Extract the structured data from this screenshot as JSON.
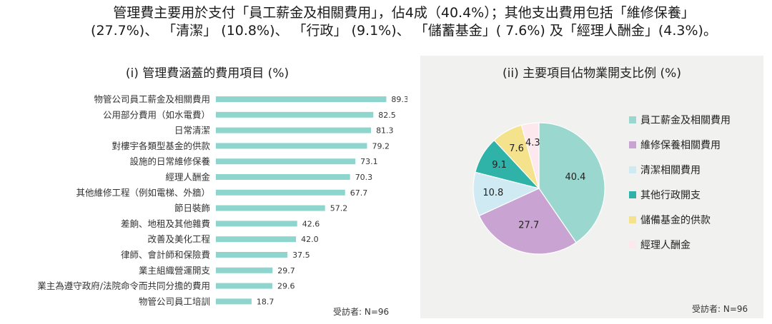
{
  "intro": {
    "line1": "管理費主要用於支付「員工薪金及相關費用」，佔4成（40.4%）；其他支出費用包括「維修保養」",
    "line2": "(27.7%)、 「清潔」 (10.8%)、 「行政」 (9.1%)、 「儲蓄基金」( 7.6%) 及「經理人酬金」(4.3%)。"
  },
  "chart_data": [
    {
      "type": "bar",
      "orientation": "horizontal",
      "title": "(i) 管理費涵蓋的費用項目 (%)",
      "note": "受訪者: N=96",
      "color": "#8ed6cd",
      "categories": [
        "物管公司員工薪金及相關費用",
        "公用部分費用（如水電費）",
        "日常清潔",
        "對樓宇各類型基金的供款",
        "設施的日常維修保養",
        "經理人酬金",
        "其他維修工程（例如電梯、外牆）",
        "節日裝飾",
        "差餉、地租及其他雜費",
        "改善及美化工程",
        "律師、會計師和保險費",
        "業主組織營運開支",
        "業主為遵守政府/法院命令而共同分擔的費用",
        "物管公司員工培訓"
      ],
      "values": [
        89.3,
        82.5,
        81.3,
        79.2,
        73.1,
        70.3,
        67.7,
        57.2,
        42.6,
        42.0,
        37.5,
        29.7,
        29.6,
        18.7
      ],
      "value_labels": [
        "89.3",
        "82.5",
        "81.3",
        "79.2",
        "73.1",
        "70.3",
        "67.7",
        "57.2",
        "42.6",
        "42.0",
        "37.5",
        "29.7",
        "29.6",
        "18.7"
      ],
      "xlim": [
        0,
        100
      ]
    },
    {
      "type": "pie",
      "title": "(ii) 主要項目佔物業開支比例 (%)",
      "note": "受訪者: N=96",
      "labels": [
        "員工薪金及相關費用",
        "維修保養相關費用",
        "清潔相關費用",
        "其他行政開支",
        "儲備基金的供款",
        "經理人酬金"
      ],
      "values": [
        40.4,
        27.7,
        10.8,
        9.1,
        7.6,
        4.3
      ],
      "value_labels": [
        "40.4",
        "27.7",
        "10.8",
        "9.1",
        "7.6",
        "4.3"
      ],
      "colors": [
        "#9ad7cf",
        "#c9a3d2",
        "#cfeaf3",
        "#2fb2a7",
        "#f4e28c",
        "#fde8ee"
      ],
      "start_angle_deg": 0,
      "direction": "clockwise"
    }
  ]
}
